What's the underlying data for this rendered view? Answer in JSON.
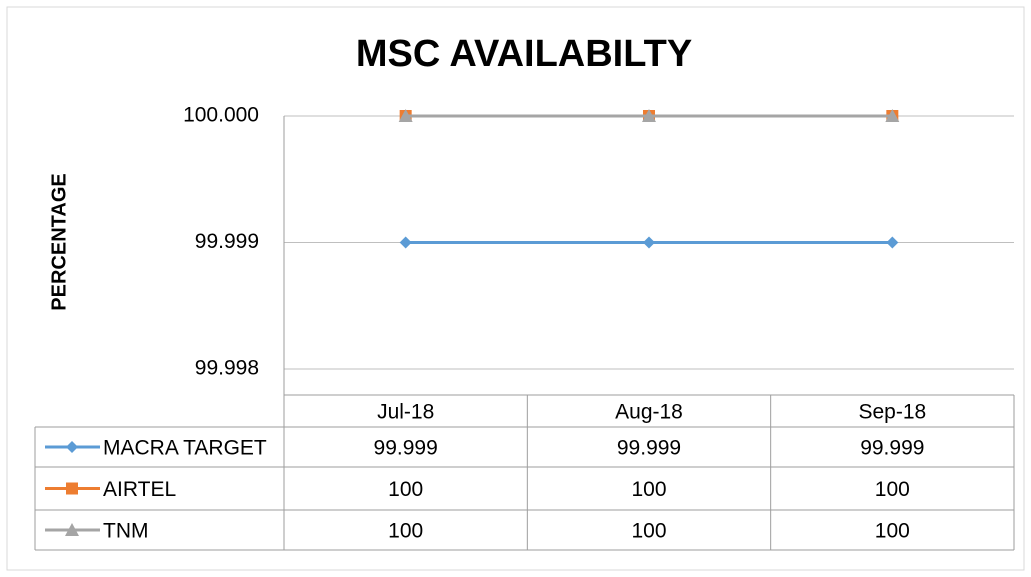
{
  "chart_data": {
    "type": "line",
    "title": "MSC AVAILABILTY",
    "y_label": "PERCENTAGE",
    "categories": [
      "Jul-18",
      "Aug-18",
      "Sep-18"
    ],
    "series": [
      {
        "name": "MACRA TARGET",
        "color": "#5b9bd5",
        "marker": "diamond",
        "values": [
          99.999,
          99.999,
          99.999
        ]
      },
      {
        "name": "AIRTEL",
        "color": "#ed7d31",
        "marker": "square",
        "values": [
          100,
          100,
          100
        ]
      },
      {
        "name": "TNM",
        "color": "#a5a5a5",
        "marker": "triangle",
        "values": [
          100,
          100,
          100
        ]
      }
    ],
    "ylim": [
      99.998,
      100
    ],
    "yticks": [
      99.998,
      99.999,
      {
        "value": 100,
        "label": "100.000"
      }
    ],
    "grid": true,
    "data_table": true
  }
}
